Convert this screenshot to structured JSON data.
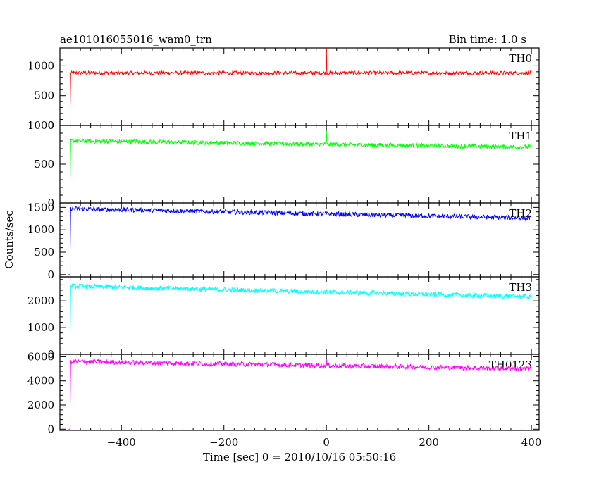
{
  "header": {
    "title": "ae101016055016_wam0_trn",
    "bin_time": "Bin time: 1.0 s"
  },
  "axes": {
    "xlabel": "Time [sec] 0 = 2010/10/16 05:50:16",
    "ylabel": "Counts/sec"
  },
  "chart_data": [
    {
      "type": "line",
      "panel": "TH0",
      "series": [
        {
          "name": "TH0",
          "color": "#ff0000",
          "x_start": -500,
          "x_end": 400,
          "level_start": 880,
          "level_end": 880,
          "spike_x": 0,
          "spike_value": 1300
        }
      ],
      "xlim": [
        -520,
        415
      ],
      "ylim": [
        0,
        1300
      ],
      "yticks": [
        0,
        500,
        1000
      ],
      "ytick_labels": [
        "0",
        "500",
        "1000"
      ],
      "xticks": [
        -400,
        -200,
        0,
        200,
        400
      ]
    },
    {
      "type": "line",
      "panel": "TH1",
      "series": [
        {
          "name": "TH1",
          "color": "#00ff00",
          "x_start": -500,
          "x_end": 400,
          "level_start": 800,
          "level_end": 720,
          "spike_x": 0,
          "spike_value": 930
        }
      ],
      "xlim": [
        -520,
        415
      ],
      "ylim": [
        0,
        1000
      ],
      "yticks": [
        0,
        500,
        1000
      ],
      "ytick_labels": [
        "0",
        "500",
        "1000"
      ],
      "xticks": [
        -400,
        -200,
        0,
        200,
        400
      ]
    },
    {
      "type": "line",
      "panel": "TH2",
      "series": [
        {
          "name": "TH2",
          "color": "#0000ff",
          "x_start": -500,
          "x_end": 400,
          "level_start": 1470,
          "level_end": 1260,
          "spike_x": null,
          "spike_value": null
        }
      ],
      "xlim": [
        -520,
        415
      ],
      "ylim": [
        -50,
        1600
      ],
      "yticks": [
        0,
        500,
        1000,
        1500
      ],
      "ytick_labels": [
        "0",
        "500",
        "1000",
        "1500"
      ],
      "xticks": [
        -400,
        -200,
        0,
        200,
        400
      ]
    },
    {
      "type": "line",
      "panel": "TH3",
      "series": [
        {
          "name": "TH3",
          "color": "#00ffff",
          "x_start": -500,
          "x_end": 400,
          "level_start": 2550,
          "level_end": 2150,
          "spike_x": null,
          "spike_value": null
        }
      ],
      "xlim": [
        -520,
        415
      ],
      "ylim": [
        0,
        2900
      ],
      "yticks": [
        0,
        1000,
        2000
      ],
      "ytick_labels": [
        "0",
        "1000",
        "2000"
      ],
      "xticks": [
        -400,
        -200,
        0,
        200,
        400
      ]
    },
    {
      "type": "line",
      "panel": "TH0123",
      "series": [
        {
          "name": "TH0123",
          "color": "#ff00ff",
          "x_start": -500,
          "x_end": 400,
          "level_start": 5600,
          "level_end": 5000,
          "spike_x": 0,
          "spike_value": 5800
        }
      ],
      "xlim": [
        -520,
        415
      ],
      "ylim": [
        -100,
        6200
      ],
      "yticks": [
        0,
        2000,
        4000,
        6000
      ],
      "ytick_labels": [
        "0",
        "2000",
        "4000",
        "6000"
      ],
      "xticks": [
        -400,
        -200,
        0,
        200,
        400
      ],
      "xtick_labels": [
        "−400",
        "−200",
        "0",
        "200",
        "400"
      ]
    }
  ]
}
